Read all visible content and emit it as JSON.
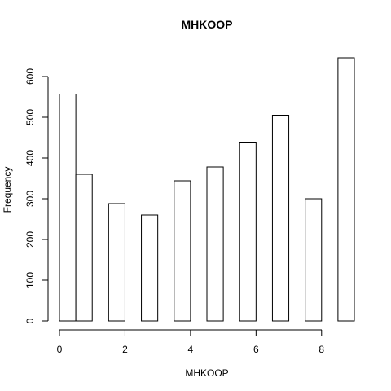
{
  "chart_data": {
    "type": "bar",
    "title": "MHKOOP",
    "xlabel": "MHKOOP",
    "ylabel": "Frequency",
    "bins": [
      {
        "x0": 0.0,
        "x1": 0.5,
        "value": 557
      },
      {
        "x0": 0.5,
        "x1": 1.0,
        "value": 360
      },
      {
        "x0": 1.0,
        "x1": 1.5,
        "value": 0
      },
      {
        "x0": 1.5,
        "x1": 2.0,
        "value": 288
      },
      {
        "x0": 2.0,
        "x1": 2.5,
        "value": 0
      },
      {
        "x0": 2.5,
        "x1": 3.0,
        "value": 260
      },
      {
        "x0": 3.0,
        "x1": 3.5,
        "value": 0
      },
      {
        "x0": 3.5,
        "x1": 4.0,
        "value": 344
      },
      {
        "x0": 4.0,
        "x1": 4.5,
        "value": 0
      },
      {
        "x0": 4.5,
        "x1": 5.0,
        "value": 378
      },
      {
        "x0": 5.0,
        "x1": 5.5,
        "value": 0
      },
      {
        "x0": 5.5,
        "x1": 6.0,
        "value": 439
      },
      {
        "x0": 6.0,
        "x1": 6.5,
        "value": 0
      },
      {
        "x0": 6.5,
        "x1": 7.0,
        "value": 505
      },
      {
        "x0": 7.0,
        "x1": 7.5,
        "value": 0
      },
      {
        "x0": 7.5,
        "x1": 8.0,
        "value": 300
      },
      {
        "x0": 8.0,
        "x1": 8.5,
        "value": 0
      },
      {
        "x0": 8.5,
        "x1": 9.0,
        "value": 646
      }
    ],
    "xlim": [
      0,
      9
    ],
    "ylim": [
      0,
      646
    ],
    "xticks": [
      0,
      2,
      4,
      6,
      8
    ],
    "yticks": [
      0,
      100,
      200,
      300,
      400,
      500,
      600
    ],
    "grid": false,
    "bar_fill": "#ffffff",
    "bar_stroke": "#000000"
  }
}
